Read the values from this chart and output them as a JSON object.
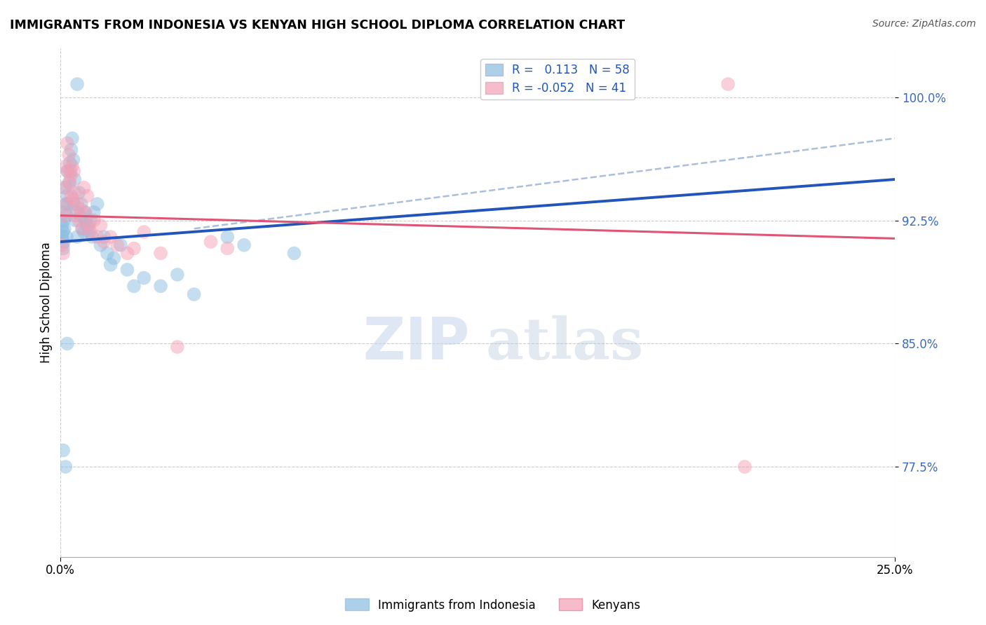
{
  "title": "IMMIGRANTS FROM INDONESIA VS KENYAN HIGH SCHOOL DIPLOMA CORRELATION CHART",
  "source": "Source: ZipAtlas.com",
  "ylabel": "High School Diploma",
  "yticks": [
    77.5,
    85.0,
    92.5,
    100.0
  ],
  "xlim": [
    0.0,
    25.0
  ],
  "ylim": [
    72.0,
    103.0
  ],
  "legend_label1": "Immigrants from Indonesia",
  "legend_label2": "Kenyans",
  "R1": 0.113,
  "N1": 58,
  "R2": -0.052,
  "N2": 41,
  "color_blue": "#8bbde0",
  "color_pink": "#f4a0b5",
  "line_blue": "#2255bb",
  "line_pink": "#e05575",
  "line_dashed_color": "#aabfd8",
  "watermark_zip": "ZIP",
  "watermark_atlas": "atlas",
  "blue_line_x": [
    0.0,
    25.0
  ],
  "blue_line_y": [
    91.2,
    95.0
  ],
  "pink_line_x": [
    0.0,
    25.0
  ],
  "pink_line_y": [
    92.8,
    91.4
  ],
  "dashed_line_x": [
    4.0,
    25.0
  ],
  "dashed_line_y": [
    92.0,
    97.5
  ],
  "blue_points": [
    [
      0.05,
      91.5
    ],
    [
      0.05,
      92.2
    ],
    [
      0.08,
      90.8
    ],
    [
      0.08,
      91.8
    ],
    [
      0.1,
      92.5
    ],
    [
      0.1,
      91.2
    ],
    [
      0.12,
      93.0
    ],
    [
      0.12,
      92.0
    ],
    [
      0.15,
      93.5
    ],
    [
      0.15,
      94.5
    ],
    [
      0.18,
      92.8
    ],
    [
      0.18,
      91.5
    ],
    [
      0.2,
      94.0
    ],
    [
      0.2,
      95.5
    ],
    [
      0.22,
      93.5
    ],
    [
      0.25,
      94.8
    ],
    [
      0.28,
      96.0
    ],
    [
      0.3,
      95.5
    ],
    [
      0.32,
      96.8
    ],
    [
      0.35,
      97.5
    ],
    [
      0.38,
      96.2
    ],
    [
      0.4,
      93.5
    ],
    [
      0.42,
      95.0
    ],
    [
      0.45,
      92.5
    ],
    [
      0.5,
      93.0
    ],
    [
      0.5,
      91.5
    ],
    [
      0.55,
      94.2
    ],
    [
      0.6,
      92.8
    ],
    [
      0.62,
      93.5
    ],
    [
      0.65,
      92.0
    ],
    [
      0.7,
      91.8
    ],
    [
      0.72,
      93.0
    ],
    [
      0.75,
      92.5
    ],
    [
      0.8,
      92.2
    ],
    [
      0.85,
      91.8
    ],
    [
      0.9,
      92.5
    ],
    [
      0.95,
      91.5
    ],
    [
      1.0,
      93.0
    ],
    [
      1.1,
      93.5
    ],
    [
      1.2,
      91.0
    ],
    [
      1.3,
      91.5
    ],
    [
      1.4,
      90.5
    ],
    [
      1.5,
      89.8
    ],
    [
      1.6,
      90.2
    ],
    [
      1.8,
      91.0
    ],
    [
      2.0,
      89.5
    ],
    [
      2.2,
      88.5
    ],
    [
      2.5,
      89.0
    ],
    [
      3.0,
      88.5
    ],
    [
      3.5,
      89.2
    ],
    [
      4.0,
      88.0
    ],
    [
      5.0,
      91.5
    ],
    [
      5.5,
      91.0
    ],
    [
      7.0,
      90.5
    ],
    [
      0.08,
      78.5
    ],
    [
      0.15,
      77.5
    ],
    [
      0.2,
      85.0
    ],
    [
      0.5,
      100.8
    ]
  ],
  "pink_points": [
    [
      0.05,
      91.0
    ],
    [
      0.08,
      90.5
    ],
    [
      0.1,
      94.5
    ],
    [
      0.12,
      92.8
    ],
    [
      0.15,
      95.8
    ],
    [
      0.18,
      93.5
    ],
    [
      0.2,
      97.2
    ],
    [
      0.22,
      95.5
    ],
    [
      0.25,
      96.5
    ],
    [
      0.28,
      94.8
    ],
    [
      0.3,
      95.2
    ],
    [
      0.32,
      94.0
    ],
    [
      0.35,
      95.8
    ],
    [
      0.38,
      93.8
    ],
    [
      0.4,
      95.5
    ],
    [
      0.42,
      94.2
    ],
    [
      0.45,
      92.8
    ],
    [
      0.5,
      93.5
    ],
    [
      0.55,
      92.5
    ],
    [
      0.6,
      93.2
    ],
    [
      0.65,
      92.0
    ],
    [
      0.7,
      94.5
    ],
    [
      0.75,
      93.0
    ],
    [
      0.8,
      94.0
    ],
    [
      0.85,
      92.2
    ],
    [
      0.9,
      91.8
    ],
    [
      1.0,
      92.5
    ],
    [
      1.1,
      91.5
    ],
    [
      1.2,
      92.2
    ],
    [
      1.3,
      91.2
    ],
    [
      1.5,
      91.5
    ],
    [
      1.7,
      91.0
    ],
    [
      2.0,
      90.5
    ],
    [
      2.2,
      90.8
    ],
    [
      2.5,
      91.8
    ],
    [
      3.0,
      90.5
    ],
    [
      3.5,
      84.8
    ],
    [
      4.5,
      91.2
    ],
    [
      5.0,
      90.8
    ],
    [
      20.0,
      100.8
    ],
    [
      20.5,
      77.5
    ]
  ]
}
